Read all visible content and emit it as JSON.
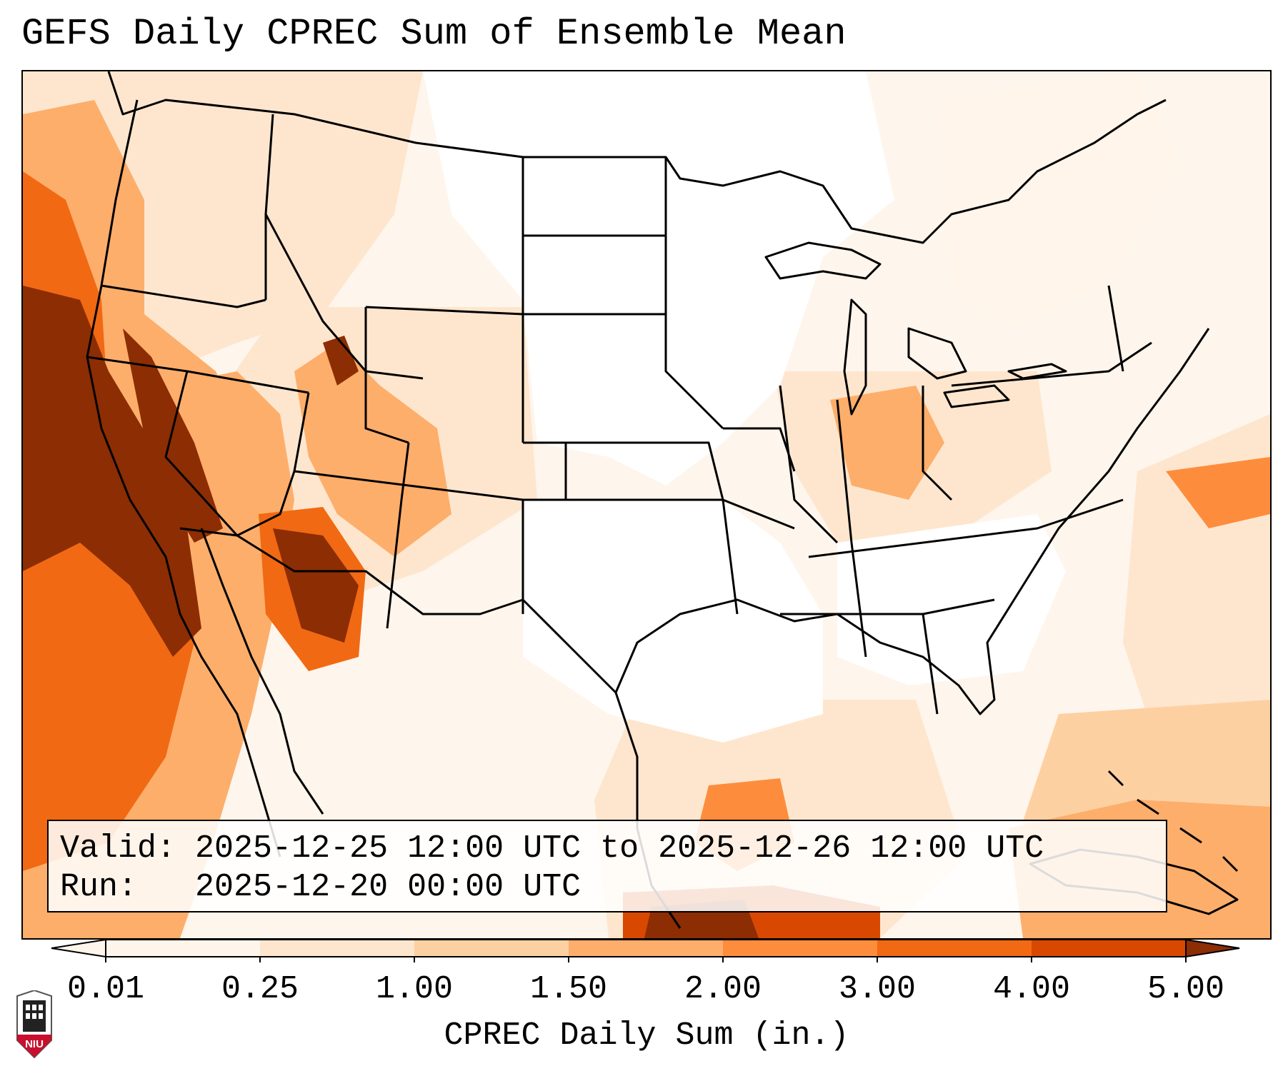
{
  "title": "GEFS Daily CPREC Sum of Ensemble Mean",
  "info": {
    "valid_label": "Valid:",
    "valid_value": "2025-12-25 12:00 UTC to 2025-12-26 12:00 UTC",
    "run_label": "Run:",
    "run_value": "2025-12-20 00:00 UTC"
  },
  "colorbar": {
    "label": "CPREC Daily Sum (in.)",
    "ticks": [
      "0.01",
      "0.25",
      "1.00",
      "1.50",
      "2.00",
      "3.00",
      "4.00",
      "5.00"
    ],
    "colors": [
      "#fff5eb",
      "#fee6ce",
      "#fdd0a2",
      "#fdae6b",
      "#fd8d3c",
      "#f16913",
      "#d94801",
      "#8c2d04"
    ],
    "extend": "both"
  },
  "logo": {
    "text": "NIU",
    "colors": {
      "shield": "#c8102e",
      "tower": "#222222"
    }
  },
  "colors": {
    "background_trace": "#fef5ec",
    "state_lines": "#000000"
  }
}
